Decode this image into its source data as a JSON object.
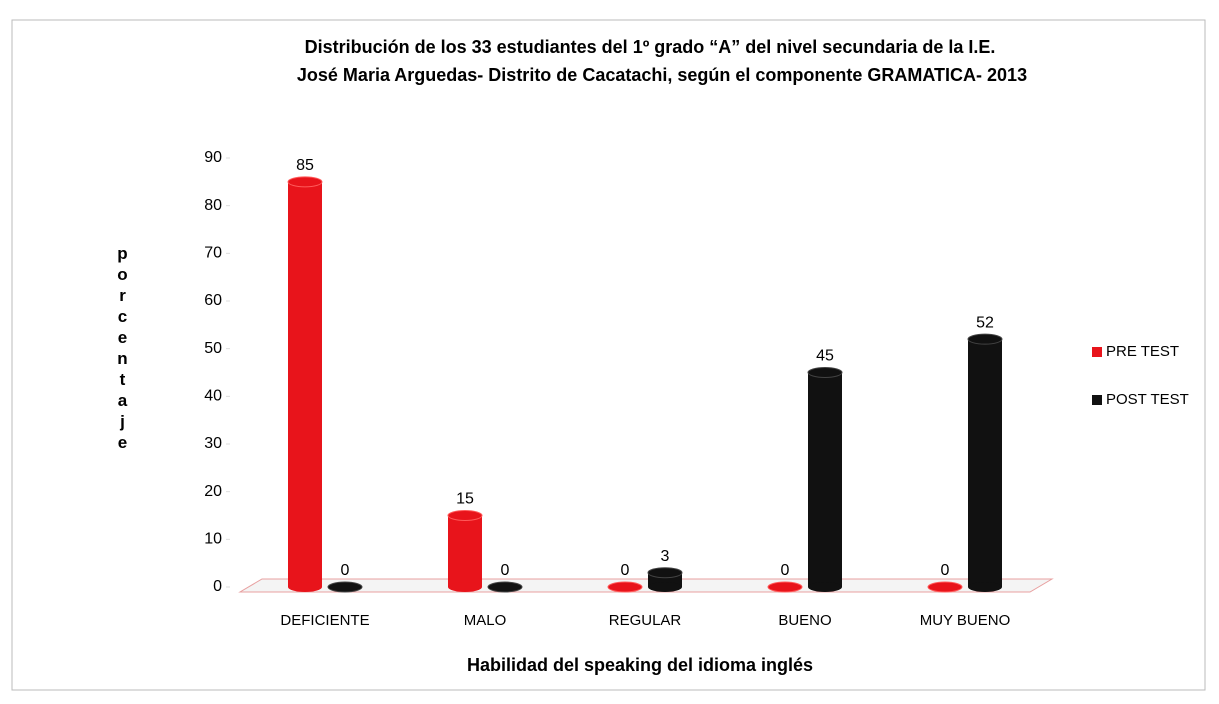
{
  "chart_data": {
    "type": "bar",
    "title": "Distribución de los 33 estudiantes  del 1º grado  “A”  del nivel secundaria de la I.E.",
    "subtitle": "José Maria Arguedas- Distrito de Cacatachi, según el componente GRAMATICA- 2013",
    "x_label": "Habilidad del speaking del idioma inglés",
    "y_label": "porcentaje",
    "categories": [
      "DEFICIENTE",
      "MALO",
      "REGULAR",
      "BUENO",
      "MUY BUENO"
    ],
    "series": [
      {
        "name": "PRE TEST",
        "color": "#e8141b",
        "values": [
          85,
          15,
          0,
          0,
          0
        ]
      },
      {
        "name": "POST TEST",
        "color": "#111111",
        "values": [
          0,
          0,
          3,
          45,
          52
        ]
      }
    ],
    "ylim": [
      0,
      90
    ],
    "yticks": [
      0,
      10,
      20,
      30,
      40,
      50,
      60,
      70,
      80,
      90
    ],
    "legend": "right"
  }
}
